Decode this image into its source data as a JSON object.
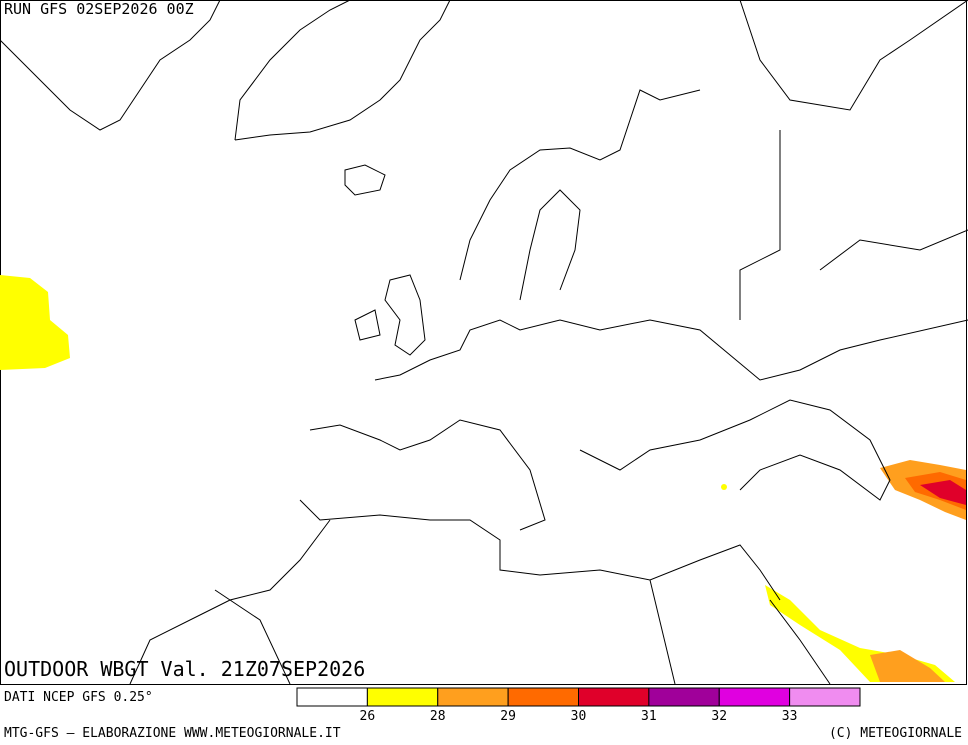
{
  "header": {
    "run": "RUN GFS 02SEP2026 00Z",
    "title": "OUTDOOR WBGT Val. 21Z07SEP2026"
  },
  "legend": {
    "colors": [
      "#ffffff",
      "#ffff00",
      "#ff9f1e",
      "#ff6a00",
      "#e0002a",
      "#a0009a",
      "#e000e0",
      "#f08cf0"
    ],
    "thresholds": [
      26,
      28,
      29,
      30,
      31,
      32,
      33
    ]
  },
  "footer": {
    "source": "DATI NCEP GFS 0.25°",
    "left": "MTG-GFS — ELABORAZIONE WWW.METEOGIORNALE.IT",
    "right": "(C) METEOGIORNALE"
  }
}
